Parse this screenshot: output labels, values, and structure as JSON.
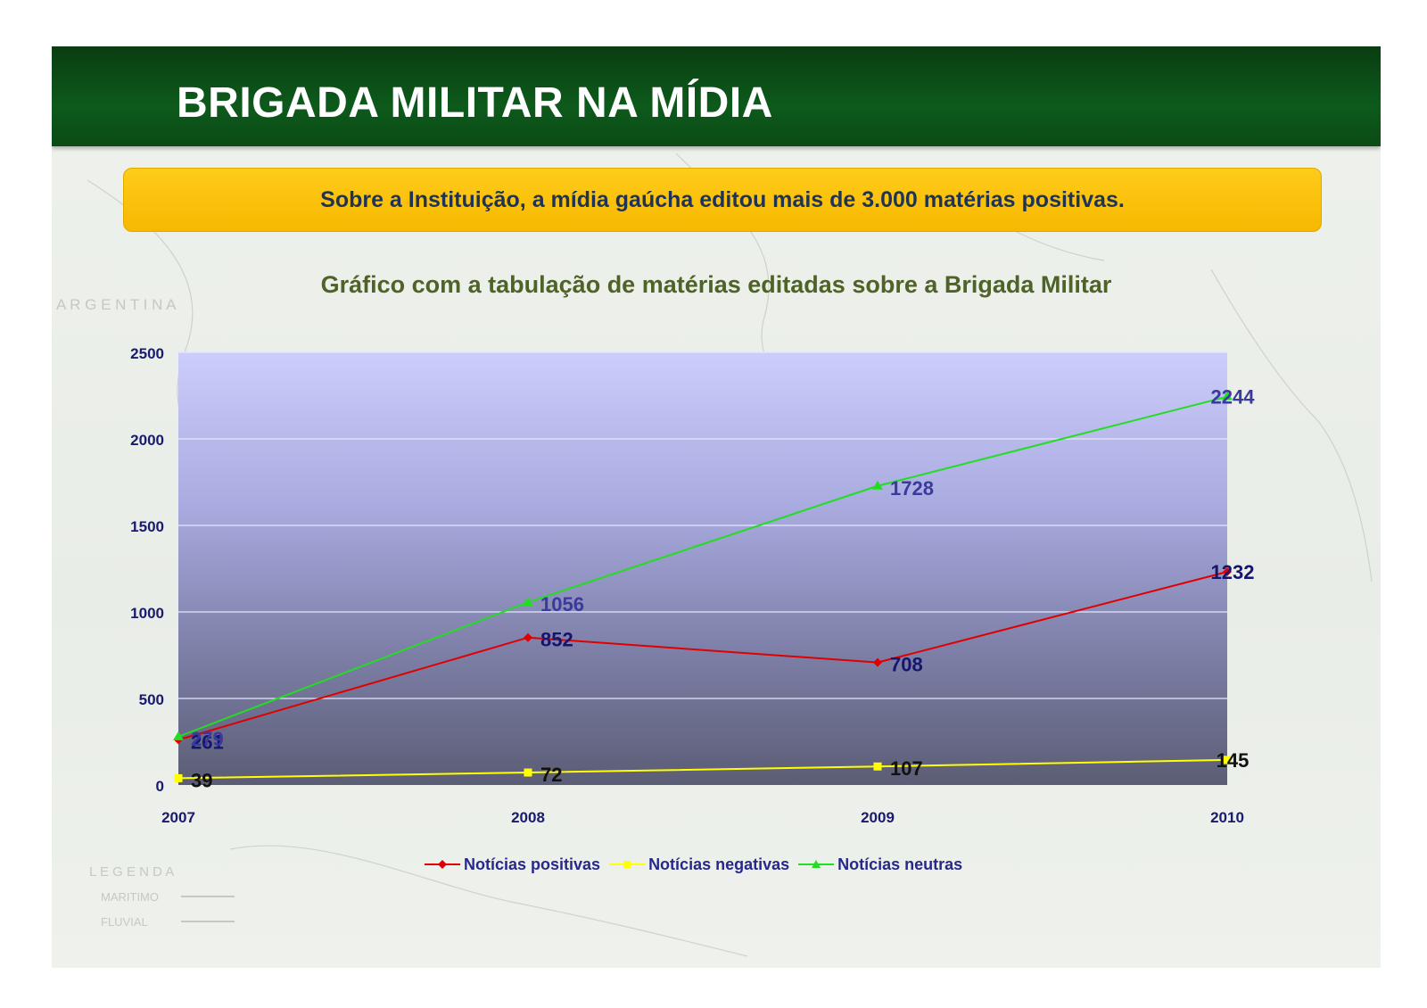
{
  "header": {
    "title": "BRIGADA MILITAR NA MÍDIA"
  },
  "banner": {
    "text": "Sobre a Instituição, a mídia gaúcha editou mais de 3.000 matérias positivas."
  },
  "background_text": {
    "argentina": "A R G E N T I N A",
    "legenda": "L E G E N D A",
    "maritimo": "MARITIMO",
    "fluvial": "FLUVIAL"
  },
  "colors": {
    "header_green": "#0d5a1b",
    "banner_yellow": "#fdbf0f",
    "positivas": "#e00000",
    "negativas": "#ffff00",
    "neutras": "#22dd22",
    "axis_text": "#1a1a6e"
  },
  "chart_data": {
    "type": "line",
    "title": "Gráfico com a tabulação de matérias editadas sobre a Brigada Militar",
    "categories": [
      "2007",
      "2008",
      "2009",
      "2010"
    ],
    "ylim": [
      0,
      2500
    ],
    "yticks": [
      0,
      500,
      1000,
      1500,
      2000,
      2500
    ],
    "xlabel": "",
    "ylabel": "",
    "grid": true,
    "legend_position": "bottom",
    "series": [
      {
        "name": "Notícias positivas",
        "values": [
          261,
          852,
          708,
          1232
        ],
        "color": "#e00000",
        "marker": "diamond"
      },
      {
        "name": "Notícias negativas",
        "values": [
          39,
          72,
          107,
          145
        ],
        "color": "#ffff00",
        "marker": "square"
      },
      {
        "name": "Notícias neutras",
        "values": [
          279,
          1056,
          1728,
          2244
        ],
        "color": "#22dd22",
        "marker": "triangle"
      }
    ]
  }
}
